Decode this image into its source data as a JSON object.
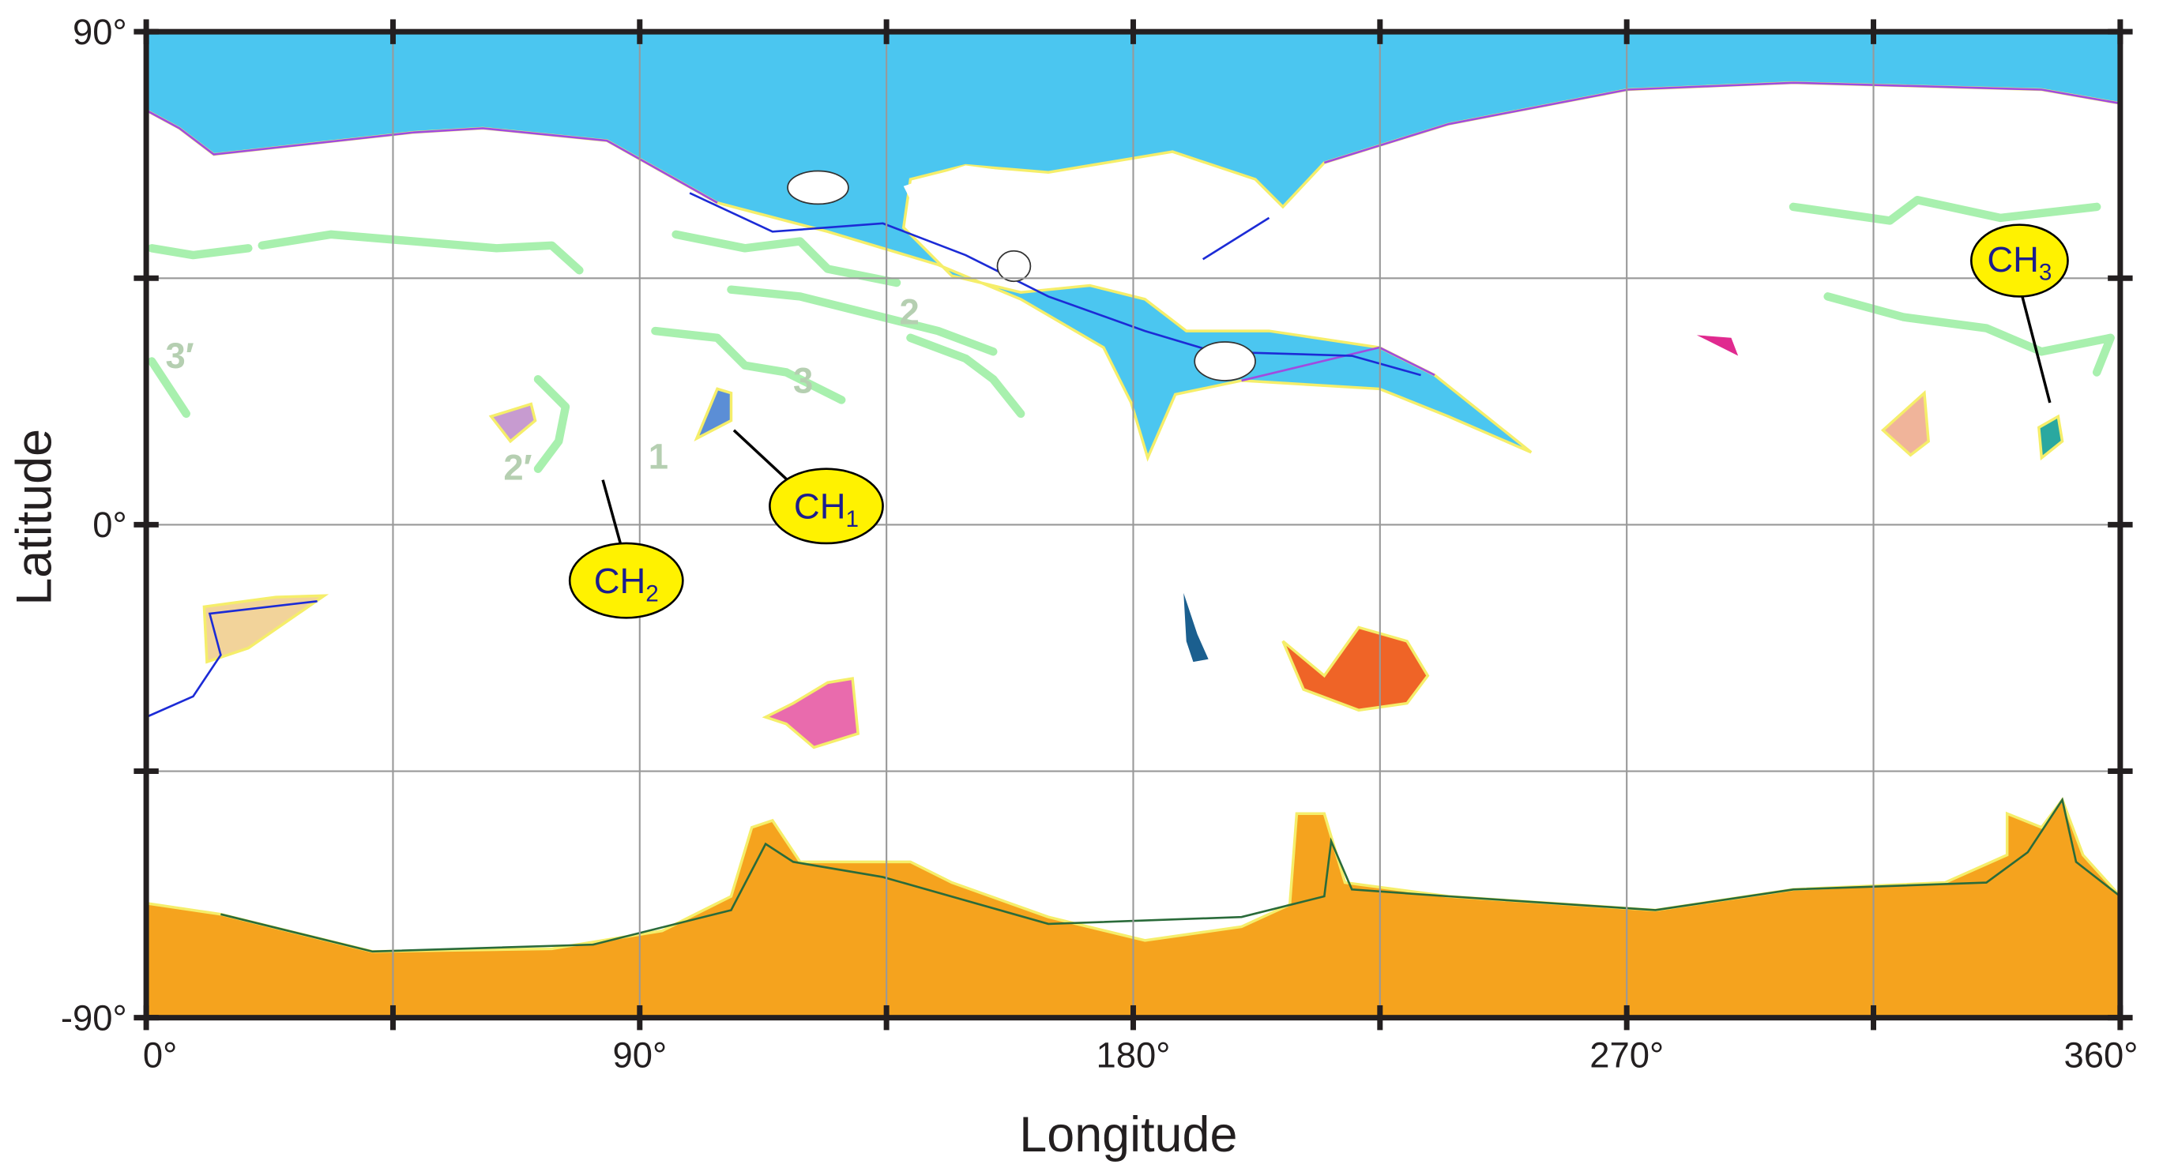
{
  "map": {
    "x_label": "Longitude",
    "y_label": "Latitude",
    "xlim": [
      0,
      360
    ],
    "ylim": [
      -90,
      90
    ],
    "xticks": [
      {
        "value": 0,
        "label": "0°"
      },
      {
        "value": 90,
        "label": "90°"
      },
      {
        "value": 180,
        "label": "180°"
      },
      {
        "value": 270,
        "label": "270°"
      },
      {
        "value": 360,
        "label": "360°"
      }
    ],
    "xminorticks": [
      45,
      135,
      225,
      315
    ],
    "yticks": [
      {
        "value": -90,
        "label": "-90°"
      },
      {
        "value": 0,
        "label": "0°"
      },
      {
        "value": 90,
        "label": "90°"
      }
    ],
    "yminorticks": [
      -45,
      45
    ],
    "grid": true,
    "callouts": [
      {
        "text": "CH",
        "subscript": "1"
      },
      {
        "text": "CH",
        "subscript": "2"
      },
      {
        "text": "CH",
        "subscript": "3"
      }
    ],
    "contour_labels": [
      "1",
      "2",
      "3",
      "2′",
      "3′"
    ]
  }
}
